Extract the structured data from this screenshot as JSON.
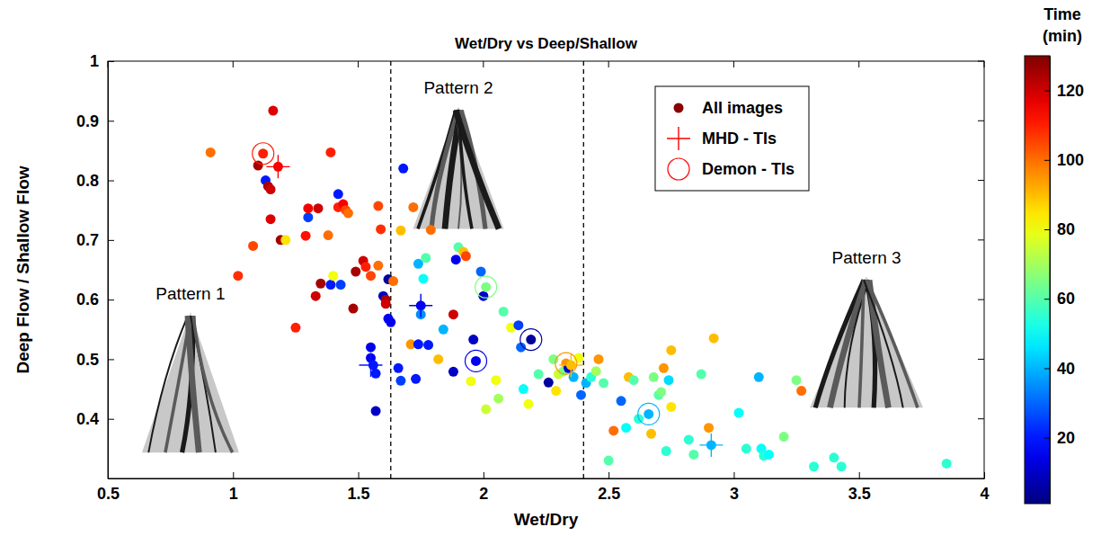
{
  "chart_data": {
    "type": "scatter",
    "title": "Wet/Dry vs Deep/Shallow",
    "x_label": "Wet/Dry",
    "y_label": "Deep Flow / Shallow Flow",
    "xlim": [
      0.5,
      4
    ],
    "xticks": [
      0.5,
      1,
      1.5,
      2,
      2.5,
      3,
      3.5,
      4
    ],
    "ylim": [
      0.3,
      1
    ],
    "yticks": [
      0.4,
      0.5,
      0.6,
      0.7,
      0.8,
      0.9,
      1
    ],
    "grid": false,
    "legend": "upper right",
    "vlines": [
      1.63,
      2.4
    ],
    "colorbar": {
      "title": "Time (min)",
      "range": [
        1,
        130
      ],
      "ticks": [
        20,
        40,
        60,
        80,
        100,
        120
      ]
    },
    "annotations": [
      {
        "text": "Pattern 1",
        "x": 0.83,
        "y": 0.6
      },
      {
        "text": "Pattern 2",
        "x": 1.9,
        "y": 0.945
      },
      {
        "text": "Pattern 3",
        "x": 3.53,
        "y": 0.66
      }
    ],
    "series": [
      {
        "name": "All images",
        "color": "#8b0000",
        "marker": "circle",
        "x": [
          0.91,
          1.02,
          1.08,
          1.1,
          1.12,
          1.13,
          1.14,
          1.15,
          1.15,
          1.16,
          1.18,
          1.19,
          1.21,
          1.25,
          1.29,
          1.3,
          1.3,
          1.33,
          1.34,
          1.35,
          1.38,
          1.39,
          1.39,
          1.4,
          1.42,
          1.42,
          1.43,
          1.44,
          1.45,
          1.46,
          1.48,
          1.49,
          1.52,
          1.53,
          1.55,
          1.55,
          1.55,
          1.56,
          1.57,
          1.57,
          1.58,
          1.58,
          1.59,
          1.6,
          1.61,
          1.61,
          1.62,
          1.62,
          1.63,
          1.64,
          1.66,
          1.67,
          1.67,
          1.68,
          1.71,
          1.72,
          1.73,
          1.74,
          1.74,
          1.75,
          1.75,
          1.76,
          1.77,
          1.78,
          1.79,
          1.82,
          1.84,
          1.88,
          1.88,
          1.89,
          1.9,
          1.92,
          1.93,
          1.95,
          1.96,
          1.97,
          1.99,
          2.0,
          2.01,
          2.01,
          2.05,
          2.06,
          2.08,
          2.11,
          2.14,
          2.15,
          2.16,
          2.18,
          2.19,
          2.22,
          2.26,
          2.28,
          2.29,
          2.3,
          2.32,
          2.33,
          2.34,
          2.35,
          2.36,
          2.38,
          2.39,
          2.41,
          2.43,
          2.45,
          2.46,
          2.48,
          2.5,
          2.52,
          2.55,
          2.57,
          2.58,
          2.6,
          2.62,
          2.66,
          2.67,
          2.68,
          2.7,
          2.71,
          2.72,
          2.73,
          2.74,
          2.75,
          2.75,
          2.82,
          2.84,
          2.87,
          2.9,
          2.91,
          2.92,
          3.02,
          3.05,
          3.1,
          3.11,
          3.12,
          3.14,
          3.2,
          3.25,
          3.27,
          3.32,
          3.4,
          3.43,
          3.85
        ],
        "values": [
          0.847,
          0.64,
          0.69,
          0.825,
          0.845,
          0.8,
          0.79,
          0.785,
          0.735,
          0.917,
          0.823,
          0.7,
          0.7,
          0.553,
          0.707,
          0.738,
          0.753,
          0.606,
          0.753,
          0.627,
          0.708,
          0.847,
          0.625,
          0.64,
          0.755,
          0.777,
          0.625,
          0.76,
          0.75,
          0.745,
          0.585,
          0.647,
          0.665,
          0.655,
          0.64,
          0.52,
          0.502,
          0.49,
          0.476,
          0.413,
          0.657,
          0.757,
          0.718,
          0.606,
          0.6,
          0.593,
          0.568,
          0.634,
          0.562,
          0.631,
          0.485,
          0.464,
          0.716,
          0.82,
          0.525,
          0.755,
          0.467,
          0.66,
          0.525,
          0.59,
          0.575,
          0.635,
          0.67,
          0.524,
          0.717,
          0.5,
          0.55,
          0.479,
          0.575,
          0.667,
          0.688,
          0.68,
          0.673,
          0.463,
          0.533,
          0.497,
          0.647,
          0.606,
          0.621,
          0.416,
          0.465,
          0.434,
          0.58,
          0.553,
          0.557,
          0.52,
          0.45,
          0.425,
          0.533,
          0.475,
          0.461,
          0.5,
          0.447,
          0.475,
          0.48,
          0.493,
          0.485,
          0.49,
          0.47,
          0.502,
          0.44,
          0.46,
          0.47,
          0.48,
          0.5,
          0.46,
          0.33,
          0.38,
          0.43,
          0.385,
          0.47,
          0.465,
          0.4,
          0.408,
          0.375,
          0.47,
          0.44,
          0.445,
          0.485,
          0.346,
          0.465,
          0.515,
          0.42,
          0.365,
          0.34,
          0.475,
          0.385,
          0.356,
          0.535,
          0.41,
          0.35,
          0.47,
          0.35,
          0.338,
          0.34,
          0.37,
          0.465,
          0.447,
          0.32,
          0.335,
          0.32,
          0.325
        ],
        "time": [
          100,
          108,
          105,
          125,
          110,
          20,
          125,
          120,
          118,
          118,
          115,
          125,
          85,
          110,
          112,
          25,
          115,
          120,
          120,
          125,
          100,
          110,
          20,
          80,
          110,
          20,
          25,
          115,
          105,
          100,
          125,
          125,
          120,
          110,
          105,
          15,
          15,
          20,
          20,
          10,
          100,
          105,
          108,
          10,
          125,
          120,
          15,
          5,
          15,
          100,
          20,
          25,
          90,
          20,
          95,
          100,
          20,
          40,
          20,
          15,
          35,
          50,
          60,
          20,
          100,
          90,
          40,
          10,
          120,
          15,
          60,
          90,
          105,
          80,
          10,
          15,
          30,
          10,
          65,
          75,
          80,
          70,
          60,
          80,
          25,
          30,
          50,
          80,
          5,
          60,
          5,
          65,
          85,
          75,
          65,
          95,
          10,
          90,
          40,
          80,
          30,
          40,
          55,
          70,
          95,
          60,
          60,
          100,
          30,
          50,
          90,
          60,
          55,
          40,
          90,
          65,
          60,
          65,
          95,
          55,
          45,
          90,
          85,
          55,
          60,
          60,
          95,
          40,
          90,
          50,
          55,
          40,
          50,
          55,
          50,
          65,
          65,
          100,
          55,
          55,
          55,
          55
        ]
      },
      {
        "name": "MHD - TIs",
        "color": "#ff0000",
        "marker": "plus",
        "x": [
          1.18,
          1.55,
          1.75,
          2.35,
          2.91
        ],
        "values": [
          0.823,
          0.49,
          0.59,
          0.49,
          0.356
        ],
        "time": [
          115,
          20,
          15,
          90,
          40
        ]
      },
      {
        "name": "Demon - TIs",
        "color": "#ff0000",
        "marker": "circle-open",
        "x": [
          1.12,
          1.97,
          2.01,
          2.19,
          2.33,
          2.66
        ],
        "values": [
          0.845,
          0.497,
          0.621,
          0.533,
          0.493,
          0.408
        ],
        "time": [
          110,
          15,
          65,
          5,
          95,
          40
        ]
      }
    ]
  }
}
